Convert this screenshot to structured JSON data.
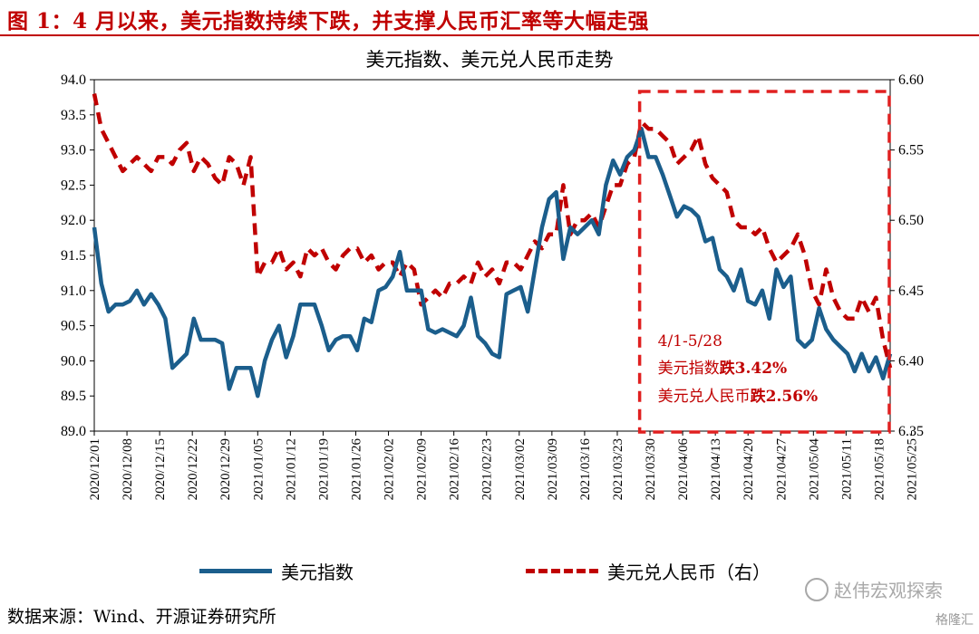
{
  "figure": {
    "title": "图 1：4 月以来，美元指数持续下跌，并支撑人民币汇率等大幅走强",
    "source": "数据来源：Wind、开源证券研究所",
    "watermark": "赵伟宏观探索",
    "watermark2": "格隆汇"
  },
  "colors": {
    "usd_index": "#1B5E8C",
    "usdcny": "#C00000",
    "title": "#C00000",
    "highlight_box": "#E02020"
  },
  "chart_data": {
    "type": "line",
    "title": "美元指数、美元兑人民币走势",
    "x_tick_labels": [
      "2020/12/01",
      "2020/12/08",
      "2020/12/15",
      "2020/12/22",
      "2020/12/29",
      "2021/01/05",
      "2021/01/12",
      "2021/01/19",
      "2021/01/26",
      "2021/02/02",
      "2021/02/09",
      "2021/02/16",
      "2021/02/23",
      "2021/03/02",
      "2021/03/09",
      "2021/03/16",
      "2021/03/23",
      "2021/03/30",
      "2021/04/06",
      "2021/04/13",
      "2021/04/20",
      "2021/04/27",
      "2021/05/04",
      "2021/05/11",
      "2021/05/18",
      "2021/05/25"
    ],
    "y_left": {
      "min": 89.0,
      "max": 94.0,
      "ticks": [
        "89.0",
        "89.5",
        "90.0",
        "90.5",
        "91.0",
        "91.5",
        "92.0",
        "92.5",
        "93.0",
        "93.5",
        "94.0"
      ]
    },
    "y_right": {
      "min": 6.35,
      "max": 6.6,
      "ticks": [
        "6.35",
        "6.40",
        "6.45",
        "6.50",
        "6.55",
        "6.60"
      ]
    },
    "series": [
      {
        "name": "美元指数",
        "axis": "left",
        "style": "solid",
        "values": [
          91.9,
          91.1,
          90.7,
          90.8,
          90.8,
          90.85,
          91.0,
          90.8,
          90.95,
          90.8,
          90.6,
          89.9,
          90.0,
          90.1,
          90.6,
          90.3,
          90.3,
          90.3,
          90.25,
          89.6,
          89.9,
          89.9,
          89.9,
          89.5,
          90.0,
          90.3,
          90.5,
          90.05,
          90.35,
          90.8,
          90.8,
          90.8,
          90.5,
          90.15,
          90.3,
          90.35,
          90.35,
          90.15,
          90.6,
          90.55,
          91.0,
          91.05,
          91.2,
          91.55,
          91.0,
          91.0,
          91.0,
          90.45,
          90.4,
          90.45,
          90.4,
          90.35,
          90.5,
          90.9,
          90.35,
          90.25,
          90.1,
          90.05,
          90.95,
          91.0,
          91.05,
          90.7,
          91.3,
          91.9,
          92.3,
          92.4,
          91.45,
          91.9,
          91.8,
          91.9,
          92.0,
          91.8,
          92.5,
          92.85,
          92.65,
          92.9,
          93.0,
          93.3,
          92.9,
          92.9,
          92.65,
          92.35,
          92.05,
          92.2,
          92.15,
          92.05,
          91.7,
          91.75,
          91.3,
          91.2,
          91.0,
          91.3,
          90.85,
          90.8,
          91.0,
          90.6,
          91.3,
          91.05,
          91.2,
          90.3,
          90.2,
          90.3,
          90.75,
          90.45,
          90.3,
          90.2,
          90.1,
          89.85,
          90.1,
          89.85,
          90.05,
          89.75,
          90.1
        ]
      },
      {
        "name": "美元兑人民币（右）",
        "axis": "right",
        "style": "dashed",
        "values": [
          6.59,
          6.565,
          6.555,
          6.545,
          6.535,
          6.54,
          6.545,
          6.54,
          6.535,
          6.545,
          6.545,
          6.54,
          6.55,
          6.555,
          6.535,
          6.545,
          6.54,
          6.53,
          6.525,
          6.545,
          6.54,
          6.525,
          6.545,
          6.46,
          6.47,
          6.47,
          6.48,
          6.465,
          6.47,
          6.46,
          6.48,
          6.475,
          6.48,
          6.47,
          6.465,
          6.475,
          6.48,
          6.48,
          6.47,
          6.475,
          6.465,
          6.47,
          6.47,
          6.46,
          6.47,
          6.465,
          6.44,
          6.445,
          6.45,
          6.445,
          6.455,
          6.455,
          6.46,
          6.455,
          6.47,
          6.46,
          6.465,
          6.455,
          6.47,
          6.47,
          6.465,
          6.475,
          6.485,
          6.48,
          6.49,
          6.49,
          6.525,
          6.49,
          6.5,
          6.5,
          6.505,
          6.495,
          6.51,
          6.525,
          6.525,
          6.54,
          6.545,
          6.57,
          6.565,
          6.565,
          6.56,
          6.555,
          6.54,
          6.545,
          6.55,
          6.56,
          6.54,
          6.53,
          6.525,
          6.52,
          6.5,
          6.495,
          6.495,
          6.49,
          6.495,
          6.48,
          6.47,
          6.475,
          6.48,
          6.49,
          6.475,
          6.45,
          6.44,
          6.465,
          6.445,
          6.435,
          6.43,
          6.43,
          6.445,
          6.435,
          6.445,
          6.415,
          6.395
        ]
      }
    ],
    "grid": false,
    "legend_position": "bottom",
    "highlight": {
      "start_index": 77,
      "lines": [
        "4/1-5/28",
        "美元指数",
        "跌3.42%",
        "美元兑人民币",
        "跌2.56%"
      ]
    }
  }
}
